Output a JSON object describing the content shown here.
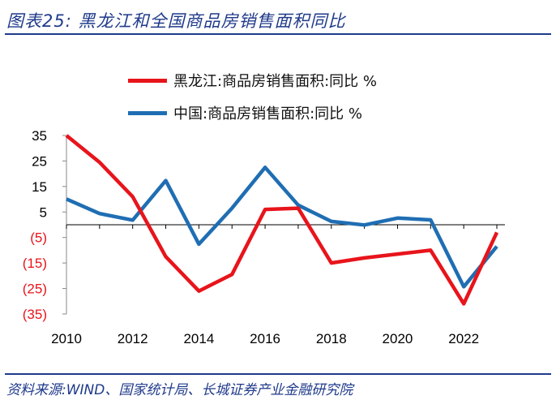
{
  "header": {
    "title": "图表25:  黑龙江和全国商品房销售面积同比"
  },
  "footer": {
    "source": "资料来源:WIND、国家统计局、长城证券产业金融研究院"
  },
  "chart_data": {
    "type": "line",
    "title": "黑龙江和全国商品房销售面积同比",
    "x": [
      2010,
      2011,
      2012,
      2013,
      2014,
      2015,
      2016,
      2017,
      2018,
      2019,
      2020,
      2021,
      2022,
      2023
    ],
    "x_tick_labels": [
      "2010",
      "2012",
      "2014",
      "2016",
      "2018",
      "2020",
      "2022"
    ],
    "y_tick_values": [
      35,
      25,
      15,
      5,
      -5,
      -15,
      -25,
      -35
    ],
    "y_tick_labels": [
      "35",
      "25",
      "15",
      "5",
      "(5)",
      "(15)",
      "(25)",
      "(35)"
    ],
    "y_tick_colors": [
      "#000000",
      "#000000",
      "#000000",
      "#000000",
      "#e8141b",
      "#e8141b",
      "#e8141b",
      "#e8141b"
    ],
    "ylim": [
      -35,
      35
    ],
    "xlim": [
      2010,
      2023
    ],
    "xlabel": "",
    "ylabel": "",
    "legend_position": "top-left",
    "series": [
      {
        "name": "黑龙江:商品房销售面积:同比 %",
        "color": "#e8141b",
        "values": [
          35,
          24.5,
          11,
          -12.5,
          -26,
          -19.5,
          6,
          6.5,
          -15,
          -13,
          -11.5,
          -10,
          -31,
          -3
        ]
      },
      {
        "name": "中国:商品房销售面积:同比 %",
        "color": "#1f6eb3",
        "values": [
          10.1,
          4.4,
          1.8,
          17.3,
          -7.6,
          6.5,
          22.5,
          7.7,
          1.3,
          -0.1,
          2.6,
          1.9,
          -24.3,
          -8.5
        ]
      }
    ]
  }
}
